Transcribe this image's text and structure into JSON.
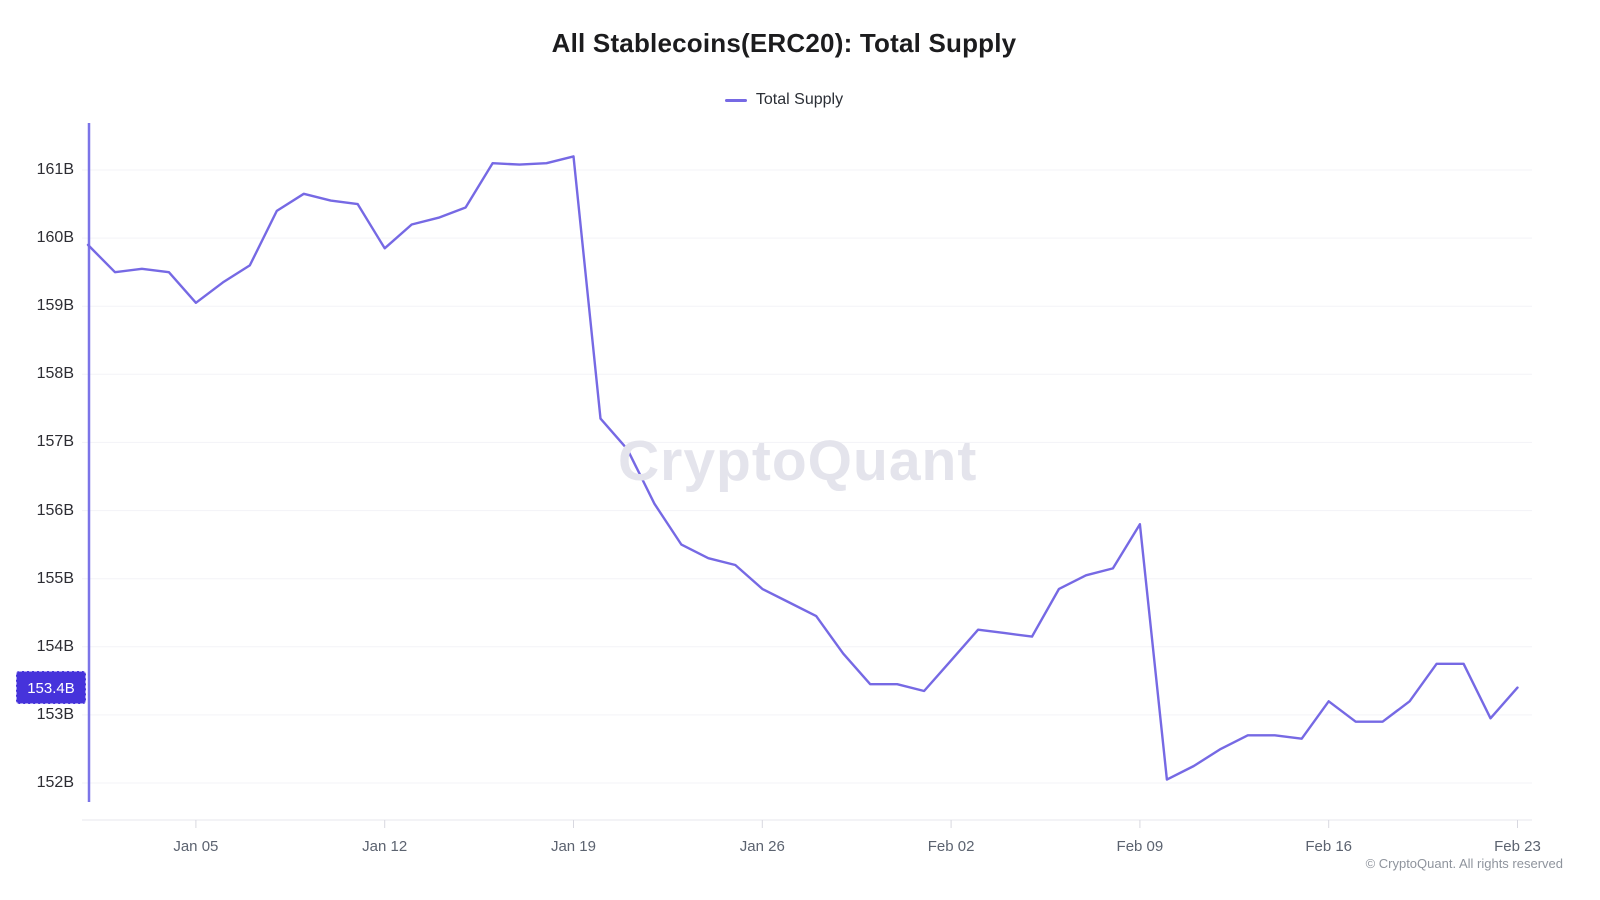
{
  "title": "All Stablecoins(ERC20): Total Supply",
  "legend": {
    "label": "Total Supply"
  },
  "watermark": "CryptoQuant",
  "copyright": "© CryptoQuant. All rights reserved",
  "last_value_badge": "153.4B",
  "colors": {
    "line": "#7669e4",
    "axis_vertical_line": "#7b74e8",
    "badge_bg": "#4633db",
    "grid": "#f3f3f7",
    "axis_bottom": "#e7e7ed",
    "tick": "#d8d8e0",
    "title_text": "#1c1c1e",
    "y_label_text": "#2d2d33",
    "x_label_text": "#5c6370",
    "watermark_text": "#e4e4ec"
  },
  "chart_data": {
    "type": "line",
    "title": "All Stablecoins(ERC20): Total Supply",
    "unit": "billions (B)",
    "legend_position": "top-center",
    "grid": "horizontal-only",
    "x": [
      "Jan 01",
      "Jan 02",
      "Jan 03",
      "Jan 04",
      "Jan 05",
      "Jan 06",
      "Jan 07",
      "Jan 08",
      "Jan 09",
      "Jan 10",
      "Jan 11",
      "Jan 12",
      "Jan 13",
      "Jan 14",
      "Jan 15",
      "Jan 16",
      "Jan 17",
      "Jan 18",
      "Jan 19",
      "Jan 20",
      "Jan 21",
      "Jan 22",
      "Jan 23",
      "Jan 24",
      "Jan 25",
      "Jan 26",
      "Jan 27",
      "Jan 28",
      "Jan 29",
      "Jan 30",
      "Jan 31",
      "Feb 01",
      "Feb 02",
      "Feb 03",
      "Feb 04",
      "Feb 05",
      "Feb 06",
      "Feb 07",
      "Feb 08",
      "Feb 09",
      "Feb 10",
      "Feb 11",
      "Feb 12",
      "Feb 13",
      "Feb 14",
      "Feb 15",
      "Feb 16",
      "Feb 17",
      "Feb 18",
      "Feb 19",
      "Feb 20",
      "Feb 21",
      "Feb 22",
      "Feb 23"
    ],
    "series": [
      {
        "name": "Total Supply",
        "values": [
          159.9,
          159.5,
          159.55,
          159.5,
          159.05,
          159.35,
          159.6,
          160.4,
          160.65,
          160.55,
          160.5,
          159.85,
          160.2,
          160.3,
          160.45,
          161.1,
          161.08,
          161.1,
          161.2,
          157.35,
          156.9,
          156.1,
          155.5,
          155.3,
          155.2,
          154.85,
          154.65,
          154.45,
          153.9,
          153.45,
          153.45,
          153.35,
          153.8,
          154.25,
          154.2,
          154.15,
          154.85,
          155.05,
          155.15,
          155.8,
          152.05,
          152.25,
          152.5,
          152.7,
          152.7,
          152.65,
          153.2,
          152.9,
          152.9,
          153.2,
          153.75,
          153.75,
          152.95,
          153.4
        ]
      }
    ],
    "last_value": 153.4,
    "yticks": [
      161,
      160,
      159,
      158,
      157,
      156,
      155,
      154,
      153,
      152
    ],
    "y_tick_labels": [
      "161B",
      "160B",
      "159B",
      "158B",
      "157B",
      "156B",
      "155B",
      "154B",
      "153B",
      "152B"
    ],
    "ylim": [
      151.6,
      161.7
    ],
    "x_tick_indices": [
      4,
      11,
      18,
      25,
      32,
      39,
      46,
      53
    ],
    "x_tick_labels": [
      "Jan 05",
      "Jan 12",
      "Jan 19",
      "Jan 26",
      "Feb 02",
      "Feb 09",
      "Feb 16",
      "Feb 23"
    ]
  }
}
